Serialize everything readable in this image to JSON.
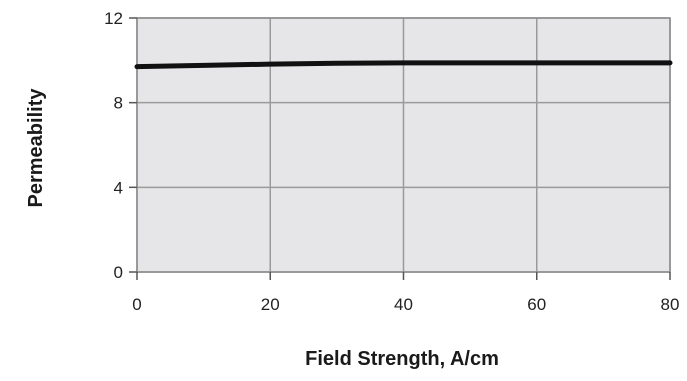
{
  "chart_data": {
    "type": "line",
    "xlabel": "Field Strength, A/cm",
    "ylabel": "Permeability",
    "xlim": [
      0,
      80
    ],
    "ylim": [
      0,
      12
    ],
    "xticks": [
      0,
      20,
      40,
      60,
      80
    ],
    "yticks": [
      0,
      4,
      8,
      12
    ],
    "grid": true,
    "colors": {
      "plot_background": "#e6e6e8",
      "grid": "#9a9a9a",
      "line": "#111111"
    },
    "series": [
      {
        "x": [
          0,
          10,
          20,
          30,
          40,
          50,
          60,
          70,
          80
        ],
        "y": [
          9.7,
          9.76,
          9.82,
          9.86,
          9.88,
          9.88,
          9.88,
          9.88,
          9.88
        ]
      }
    ]
  }
}
